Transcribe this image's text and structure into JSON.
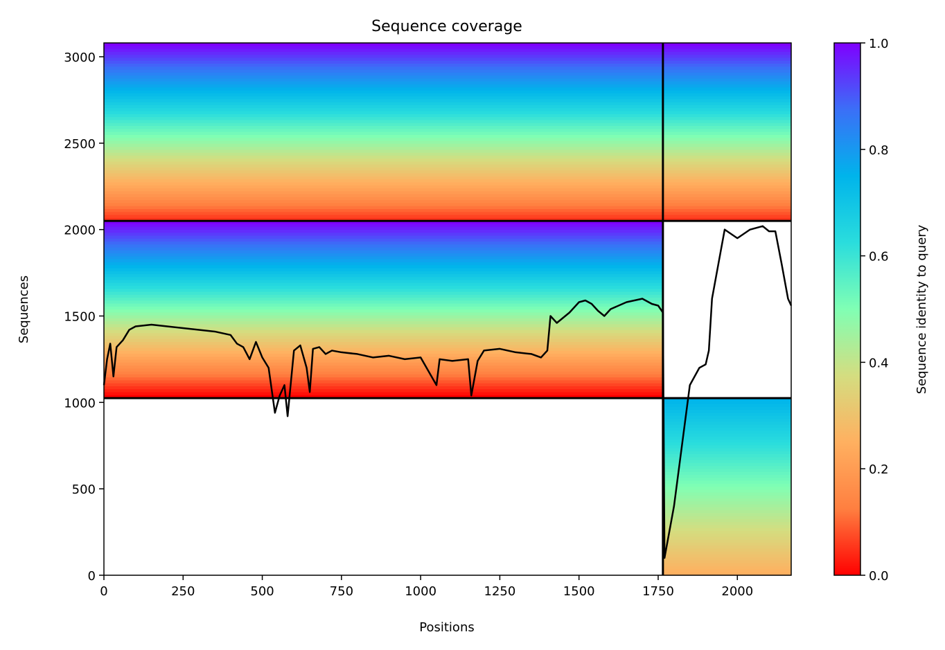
{
  "chart_data": {
    "type": "heatmap",
    "title": "Sequence coverage",
    "xlabel": "Positions",
    "ylabel": "Sequences",
    "xlim": [
      0,
      2170
    ],
    "ylim": [
      0,
      3080
    ],
    "xticks": [
      0,
      250,
      500,
      750,
      1000,
      1250,
      1500,
      1750,
      2000
    ],
    "yticks": [
      0,
      500,
      1000,
      1500,
      2000,
      2500,
      3000
    ],
    "colorbar": {
      "label": "Sequence identity to query",
      "range": [
        0,
        1
      ],
      "ticks": [
        "0.0",
        "0.2",
        "0.4",
        "0.6",
        "0.8",
        "1.0"
      ],
      "colormap": "rainbow",
      "stops": [
        "#ff0000",
        "#ff7f40",
        "#ffb060",
        "#d4dd80",
        "#80ffb4",
        "#2adddd",
        "#00b4eb",
        "#3b6ff7",
        "#7f00ff"
      ]
    },
    "blocks": [
      {
        "name": "chain-1-self",
        "x": [
          0,
          1765
        ],
        "y": [
          2050,
          3080
        ],
        "identity_top": 1.0,
        "identity_bottom": 0.05
      },
      {
        "name": "chain-1-paired",
        "x": [
          1765,
          2170
        ],
        "y": [
          2050,
          3080
        ],
        "identity_top": 1.0,
        "identity_bottom": 0.05
      },
      {
        "name": "chain-1-partial",
        "x": [
          0,
          1765
        ],
        "y": [
          1025,
          2050
        ],
        "identity_top": 1.0,
        "identity_bottom": 0.0
      },
      {
        "name": "chain-2-self",
        "x": [
          1765,
          2170
        ],
        "y": [
          0,
          1025
        ],
        "identity_top": 0.75,
        "identity_bottom": 0.25
      }
    ],
    "separators": {
      "x": [
        1765
      ],
      "y": [
        1025,
        2050
      ]
    },
    "coverage": {
      "name": "coverage",
      "color": "#000000",
      "x": [
        0,
        10,
        20,
        30,
        40,
        60,
        80,
        100,
        150,
        200,
        250,
        300,
        350,
        400,
        420,
        440,
        460,
        480,
        500,
        520,
        540,
        555,
        570,
        580,
        600,
        620,
        640,
        650,
        660,
        680,
        700,
        720,
        750,
        800,
        850,
        900,
        950,
        1000,
        1050,
        1060,
        1100,
        1150,
        1160,
        1180,
        1200,
        1250,
        1300,
        1350,
        1380,
        1400,
        1410,
        1430,
        1450,
        1470,
        1500,
        1520,
        1540,
        1560,
        1580,
        1600,
        1650,
        1700,
        1730,
        1750,
        1765,
        1770,
        1780,
        1800,
        1850,
        1880,
        1900,
        1910,
        1920,
        1940,
        1960,
        2000,
        2040,
        2080,
        2100,
        2120,
        2140,
        2160,
        2170
      ],
      "y": [
        1100,
        1250,
        1340,
        1150,
        1320,
        1360,
        1420,
        1440,
        1450,
        1440,
        1430,
        1420,
        1410,
        1390,
        1340,
        1320,
        1250,
        1350,
        1260,
        1200,
        940,
        1040,
        1100,
        920,
        1300,
        1330,
        1200,
        1060,
        1310,
        1320,
        1280,
        1300,
        1290,
        1280,
        1260,
        1270,
        1250,
        1260,
        1100,
        1250,
        1240,
        1250,
        1040,
        1240,
        1300,
        1310,
        1290,
        1280,
        1260,
        1300,
        1500,
        1460,
        1490,
        1520,
        1580,
        1590,
        1570,
        1530,
        1500,
        1540,
        1580,
        1600,
        1570,
        1560,
        1520,
        100,
        200,
        400,
        1100,
        1200,
        1220,
        1300,
        1600,
        1800,
        2000,
        1950,
        2000,
        2020,
        1990,
        1990,
        1800,
        1600,
        1560
      ]
    }
  }
}
